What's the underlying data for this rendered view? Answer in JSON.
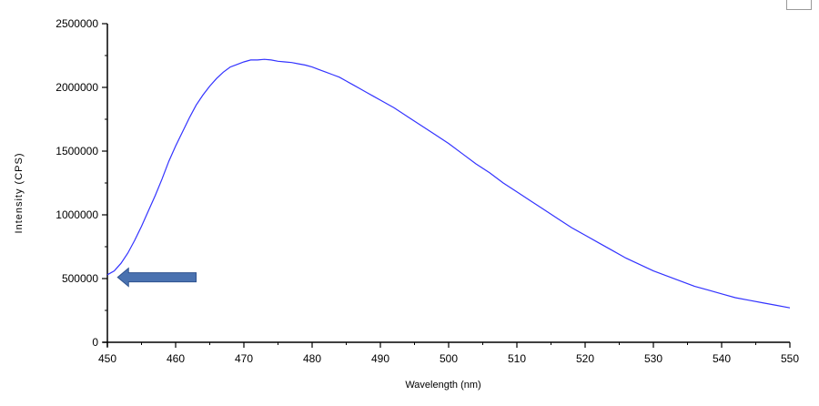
{
  "chart_data": {
    "type": "line",
    "title": "",
    "xlabel": "Wavelength (nm)",
    "ylabel": "Intensity (CPS)",
    "xlim": [
      450,
      550
    ],
    "ylim": [
      0,
      2500000
    ],
    "x_ticks": [
      "450",
      "460",
      "470",
      "480",
      "490",
      "500",
      "510",
      "520",
      "530",
      "540",
      "550"
    ],
    "y_ticks": [
      "0",
      "500000",
      "1000000",
      "1500000",
      "2000000",
      "2500000"
    ],
    "grid": false,
    "legend": "none",
    "series": [
      {
        "color": "#3333ff",
        "x": [
          450,
          451,
          452,
          453,
          454,
          455,
          456,
          457,
          458,
          459,
          460,
          461,
          462,
          463,
          464,
          465,
          466,
          467,
          468,
          469,
          470,
          471,
          472,
          473,
          474,
          475,
          476,
          477,
          478,
          479,
          480,
          481,
          482,
          483,
          484,
          485,
          486,
          487,
          488,
          489,
          490,
          492,
          494,
          496,
          498,
          500,
          502,
          504,
          506,
          508,
          510,
          512,
          514,
          516,
          518,
          520,
          522,
          524,
          526,
          528,
          530,
          532,
          534,
          536,
          538,
          540,
          542,
          544,
          546,
          548,
          550
        ],
        "y": [
          530000,
          560000,
          620000,
          700000,
          800000,
          910000,
          1030000,
          1150000,
          1280000,
          1420000,
          1540000,
          1650000,
          1760000,
          1860000,
          1940000,
          2010000,
          2070000,
          2120000,
          2160000,
          2180000,
          2200000,
          2215000,
          2215000,
          2220000,
          2215000,
          2205000,
          2200000,
          2195000,
          2185000,
          2175000,
          2160000,
          2140000,
          2120000,
          2100000,
          2080000,
          2050000,
          2020000,
          1990000,
          1960000,
          1930000,
          1900000,
          1840000,
          1770000,
          1700000,
          1630000,
          1560000,
          1480000,
          1400000,
          1330000,
          1250000,
          1180000,
          1110000,
          1040000,
          970000,
          900000,
          840000,
          780000,
          720000,
          660000,
          610000,
          560000,
          520000,
          480000,
          440000,
          410000,
          380000,
          350000,
          330000,
          310000,
          290000,
          270000
        ]
      }
    ]
  },
  "annotation": {
    "arrow_color": "#4a72b0",
    "arrow_x_start": 463,
    "arrow_x_end": 451.5,
    "arrow_y": 510000
  }
}
